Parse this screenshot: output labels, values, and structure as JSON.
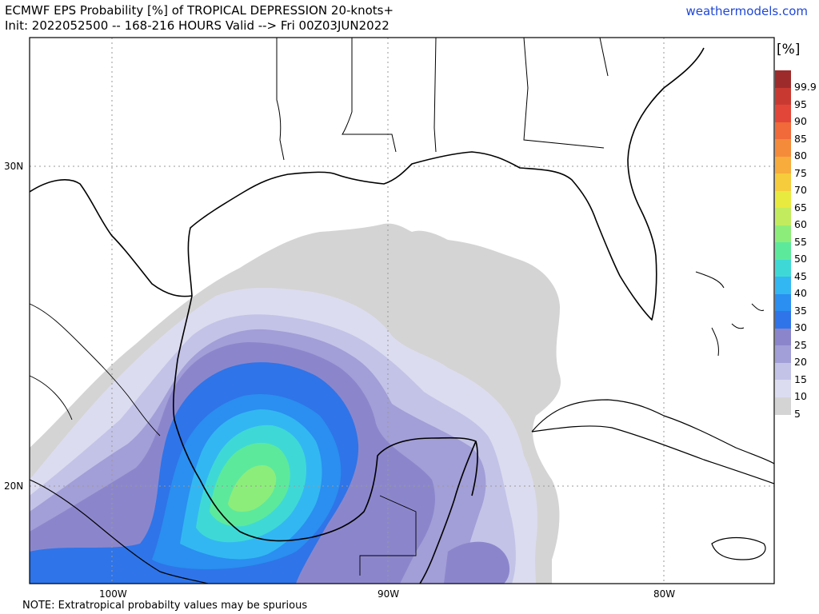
{
  "header": {
    "title_line1": "ECMWF EPS Probability [%] of TROPICAL DEPRESSION 20-knots+",
    "title_line2": "Init: 2022052500 -- 168-216 HOURS Valid --> Fri 00Z03JUN2022",
    "brand": "weathermodels.com"
  },
  "axes": {
    "lat_labels": [
      "30N",
      "20N"
    ],
    "lon_labels": [
      "100W",
      "90W",
      "80W"
    ]
  },
  "footer": {
    "note": "NOTE: Extratropical probabilty values may be spurious"
  },
  "legend": {
    "unit": "[%]",
    "items": [
      {
        "label": "99.9",
        "color": "#9e2b2b"
      },
      {
        "label": "95",
        "color": "#c83a31"
      },
      {
        "label": "90",
        "color": "#e24638"
      },
      {
        "label": "85",
        "color": "#f06a3a"
      },
      {
        "label": "80",
        "color": "#f48b3a"
      },
      {
        "label": "75",
        "color": "#f7ac3b"
      },
      {
        "label": "70",
        "color": "#f6cc3c"
      },
      {
        "label": "65",
        "color": "#e9ea3f"
      },
      {
        "label": "60",
        "color": "#c2ec5e"
      },
      {
        "label": "55",
        "color": "#8ded7a"
      },
      {
        "label": "50",
        "color": "#5de99c"
      },
      {
        "label": "45",
        "color": "#3ed9d6"
      },
      {
        "label": "40",
        "color": "#33b7f2"
      },
      {
        "label": "35",
        "color": "#2a8ff0"
      },
      {
        "label": "30",
        "color": "#2f74e8"
      },
      {
        "label": "25",
        "color": "#8b86cc"
      },
      {
        "label": "20",
        "color": "#a29ed7"
      },
      {
        "label": "15",
        "color": "#c3c3e8"
      },
      {
        "label": "10",
        "color": "#dcdcf0"
      },
      {
        "label": "5",
        "color": "#d4d4d4"
      }
    ]
  }
}
